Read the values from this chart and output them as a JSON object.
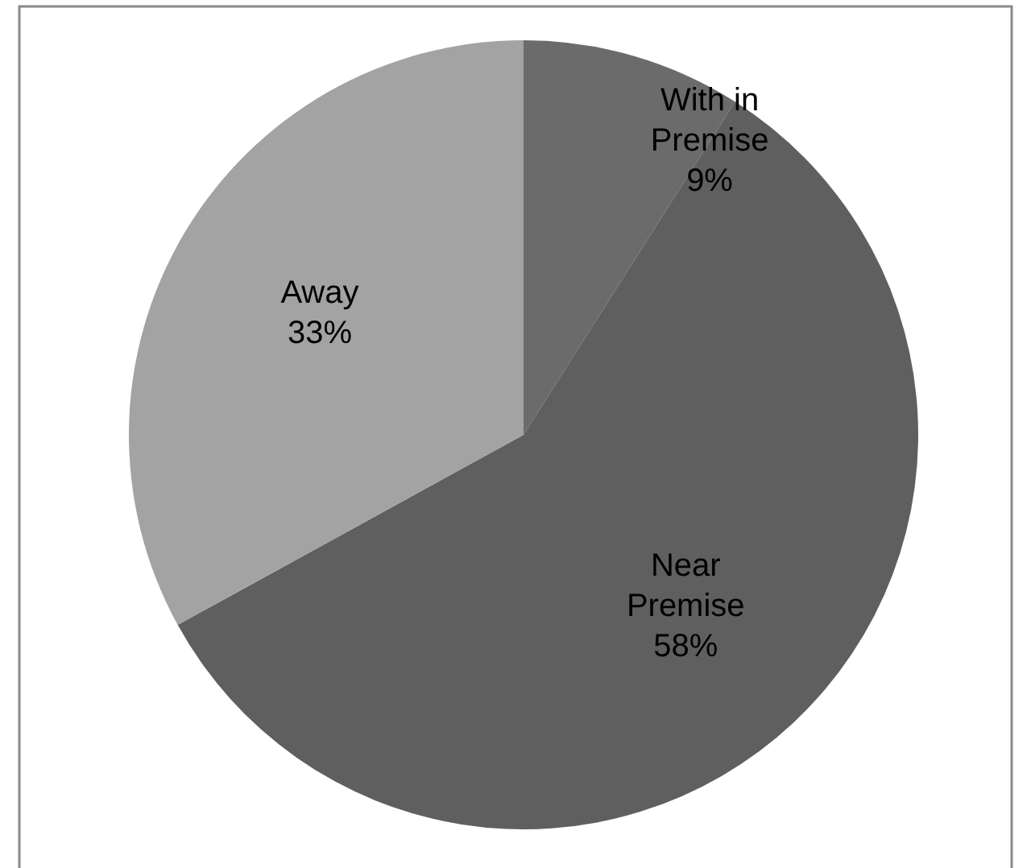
{
  "chart_data": {
    "type": "pie",
    "categories": [
      "With in Premise",
      "Near Premise",
      "Away"
    ],
    "values": [
      9,
      58,
      33
    ],
    "colors": [
      "#6b6b6b",
      "#5f5f5f",
      "#a3a3a3"
    ],
    "value_labels": [
      "9%",
      "58%",
      "33%"
    ]
  }
}
